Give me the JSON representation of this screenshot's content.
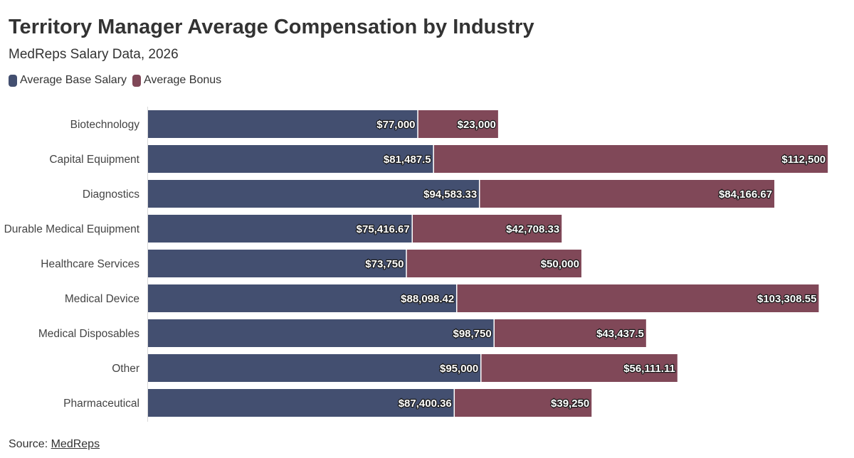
{
  "header": {
    "title": "Territory Manager Average Compensation by Industry",
    "subtitle": "MedReps Salary Data, 2026"
  },
  "legend": {
    "items": [
      {
        "label": "Average Base Salary",
        "color": "#434f70"
      },
      {
        "label": "Average Bonus",
        "color": "#804858"
      }
    ]
  },
  "footer": {
    "source_prefix": "Source: ",
    "source_link": "MedReps"
  },
  "chart_data": {
    "type": "bar",
    "orientation": "horizontal",
    "stacked": true,
    "title": "Territory Manager Average Compensation by Industry",
    "subtitle": "MedReps Salary Data, 2026",
    "categories": [
      "Biotechnology",
      "Capital Equipment",
      "Diagnostics",
      "Durable Medical Equipment",
      "Healthcare Services",
      "Medical Device",
      "Medical Disposables",
      "Other",
      "Pharmaceutical"
    ],
    "series": [
      {
        "name": "Average Base Salary",
        "color": "#434f70",
        "values": [
          77000,
          81487.5,
          94583.33,
          75416.67,
          73750,
          88098.42,
          98750,
          95000,
          87400.36
        ],
        "labels": [
          "$77,000",
          "$81,487.5",
          "$94,583.33",
          "$75,416.67",
          "$73,750",
          "$88,098.42",
          "$98,750",
          "$95,000",
          "$87,400.36"
        ]
      },
      {
        "name": "Average Bonus",
        "color": "#804858",
        "values": [
          23000,
          112500,
          84166.67,
          42708.33,
          50000,
          103308.55,
          43437.5,
          56111.11,
          39250
        ],
        "labels": [
          "$23,000",
          "$112,500",
          "$84,166.67",
          "$42,708.33",
          "$50,000",
          "$103,308.55",
          "$43,437.5",
          "$56,111.11",
          "$39,250"
        ]
      }
    ],
    "xlim": [
      0,
      197000
    ],
    "legend_position": "top-left",
    "grid": false
  }
}
